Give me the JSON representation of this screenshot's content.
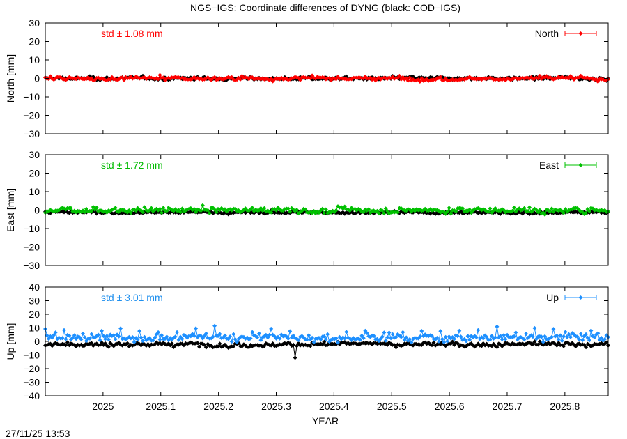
{
  "title": "NGS−IGS: Coordinate differences of DYNG (black: COD−IGS)",
  "footer_timestamp": "27/11/25 13:53",
  "chart_data": {
    "type": "line",
    "xlabel": "YEAR",
    "xlim": [
      2024.9,
      2025.875
    ],
    "xticks": [
      2025,
      2025.1,
      2025.2,
      2025.3,
      2025.4,
      2025.5,
      2025.6,
      2025.7,
      2025.8
    ],
    "xtick_labels": [
      "2025",
      "2025.1",
      "2025.2",
      "2025.3",
      "2025.4",
      "2025.5",
      "2025.6",
      "2025.7",
      "2025.8"
    ],
    "grid": false,
    "panels": [
      {
        "id": "north",
        "ylabel": "North [mm]",
        "ylim": [
          -30,
          30
        ],
        "yticks": [
          -30,
          -20,
          -10,
          0,
          10,
          20,
          30
        ],
        "ytick_labels": [
          "−30",
          "−20",
          "−10",
          "0",
          "10",
          "20",
          "30"
        ],
        "annotation": "std ± 1.08 mm",
        "annotation_color": "#ff0000",
        "legend_position": "top-right",
        "series": [
          {
            "name": "North",
            "color": "#ff0000",
            "role": "NGS−IGS",
            "mean": 0.0,
            "std": 1.08
          },
          {
            "name": "",
            "color": "#000000",
            "role": "COD−IGS",
            "mean": 0.0,
            "std": 0.9
          }
        ]
      },
      {
        "id": "east",
        "ylabel": "East [mm]",
        "ylim": [
          -30,
          30
        ],
        "yticks": [
          -30,
          -20,
          -10,
          0,
          10,
          20,
          30
        ],
        "ytick_labels": [
          "−30",
          "−20",
          "−10",
          "0",
          "10",
          "20",
          "30"
        ],
        "annotation": "std ± 1.72 mm",
        "annotation_color": "#00bb00",
        "legend_position": "top-right",
        "series": [
          {
            "name": "East",
            "color": "#00c000",
            "role": "NGS−IGS",
            "mean": 0.0,
            "std": 1.72
          },
          {
            "name": "",
            "color": "#000000",
            "role": "COD−IGS",
            "mean": -1.2,
            "std": 0.8
          }
        ]
      },
      {
        "id": "up",
        "ylabel": "Up [mm]",
        "ylim": [
          -40,
          40
        ],
        "yticks": [
          -40,
          -30,
          -20,
          -10,
          0,
          10,
          20,
          30,
          40
        ],
        "ytick_labels": [
          "−40",
          "−30",
          "−20",
          "−10",
          "0",
          "10",
          "20",
          "30",
          "40"
        ],
        "annotation": "std ± 3.01 mm",
        "annotation_color": "#2090ee",
        "legend_position": "top-right",
        "series": [
          {
            "name": "Up",
            "color": "#1e90ff",
            "role": "NGS−IGS",
            "mean": 3.0,
            "std": 3.01
          },
          {
            "name": "",
            "color": "#000000",
            "role": "COD−IGS",
            "mean": -2.0,
            "std": 1.8
          }
        ]
      }
    ]
  }
}
